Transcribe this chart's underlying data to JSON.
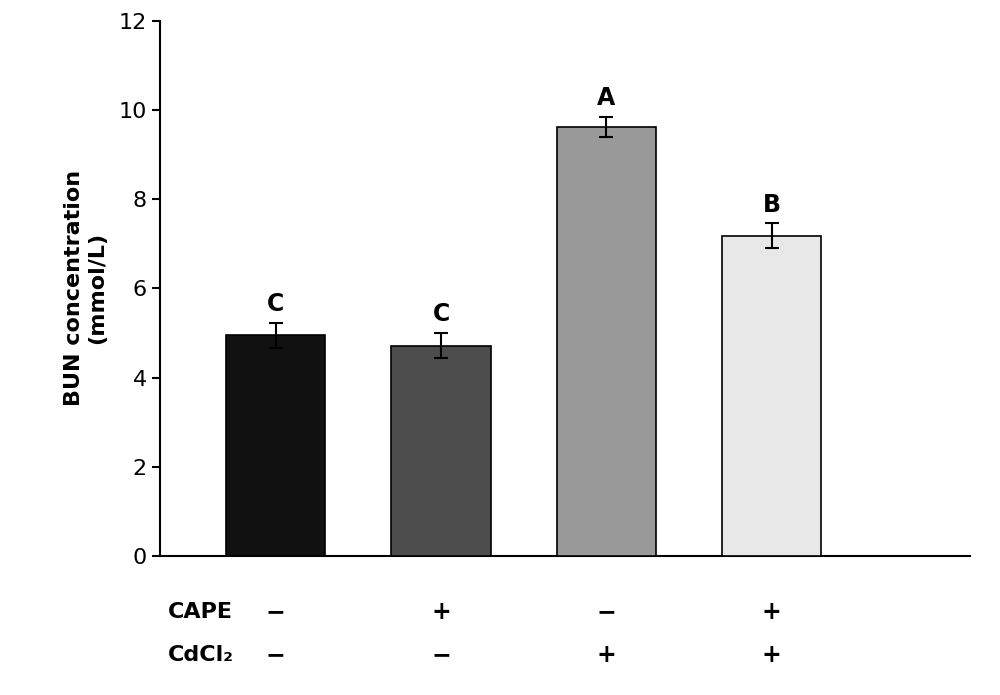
{
  "bar_values": [
    4.95,
    4.72,
    9.62,
    7.18
  ],
  "bar_errors": [
    0.28,
    0.28,
    0.22,
    0.28
  ],
  "bar_colors": [
    "#111111",
    "#4d4d4d",
    "#999999",
    "#e8e8e8"
  ],
  "bar_edge_colors": [
    "#000000",
    "#000000",
    "#000000",
    "#000000"
  ],
  "bar_labels": [
    "C",
    "C",
    "A",
    "B"
  ],
  "x_positions": [
    1,
    2,
    3,
    4
  ],
  "bar_width": 0.6,
  "ylabel_line1": "BUN concentration",
  "ylabel_line2": "(mmol/L)",
  "ylim": [
    0,
    12
  ],
  "yticks": [
    0,
    2,
    4,
    6,
    8,
    10,
    12
  ],
  "cape_signs": [
    "−",
    "+",
    "−",
    "+"
  ],
  "cdcl2_signs": [
    "−",
    "−",
    "+",
    "+"
  ],
  "row_labels": [
    "CAPE",
    "CdCl₂"
  ],
  "background_color": "#ffffff",
  "tick_fontsize": 16,
  "label_fontsize": 16,
  "annotation_fontsize": 17,
  "row_label_fontsize": 16,
  "sign_fontsize": 17,
  "xlim": [
    0.3,
    5.2
  ]
}
